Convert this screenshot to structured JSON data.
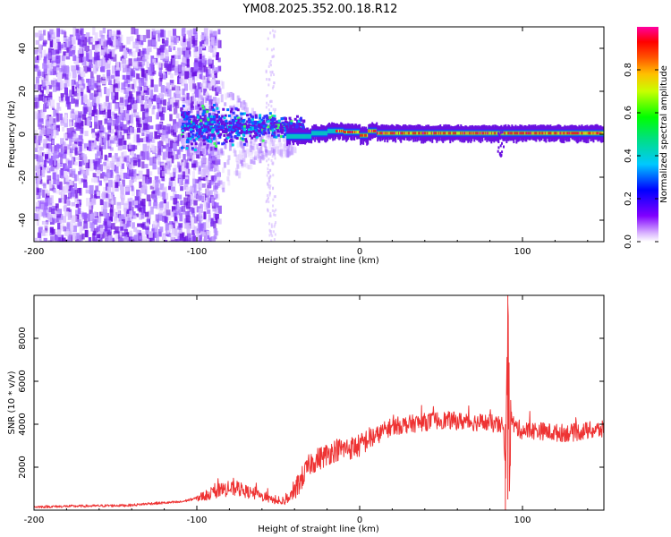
{
  "figure_title": "YM08.2025.352.00.18.R12",
  "chart_data": [
    {
      "type": "heatmap",
      "title": "YM08.2025.352.00.18.R12",
      "xlabel": "Height of straight line (km)",
      "ylabel": "Frequency (Hz)",
      "xlim": [
        -200,
        150
      ],
      "ylim": [
        -50,
        50
      ],
      "xticks": [
        -200,
        -100,
        0,
        100
      ],
      "yticks": [
        -40,
        -20,
        0,
        20,
        40
      ],
      "colorbar": {
        "label": "Normalized spectral amplitude",
        "range": [
          0.0,
          1.0
        ],
        "ticks": [
          0.0,
          0.2,
          0.4,
          0.6,
          0.8
        ],
        "colormap": "rainbow (purple-blue-cyan-green-yellow-orange-red-magenta)"
      },
      "description_points": {
        "noise_region_km": [
          -200,
          -95
        ],
        "dominant_frequency_hz": 0,
        "band_emerges_km": -45
      }
    },
    {
      "type": "line",
      "xlabel": "Height of straight line (km)",
      "ylabel": "SNR (10 * v/v)",
      "xlim": [
        -200,
        150
      ],
      "ylim": [
        0,
        10000
      ],
      "xticks": [
        -200,
        -100,
        0,
        100
      ],
      "yticks": [
        2000,
        4000,
        6000,
        8000
      ],
      "color": "#ee3333",
      "series": [
        {
          "name": "SNR",
          "x": [
            -200,
            -180,
            -160,
            -140,
            -130,
            -110,
            -100,
            -92,
            -85,
            -75,
            -65,
            -55,
            -48,
            -45,
            -40,
            -35,
            -30,
            -25,
            -20,
            -15,
            -10,
            -5,
            0,
            5,
            10,
            15,
            20,
            30,
            40,
            50,
            60,
            70,
            80,
            88,
            90,
            91,
            92,
            93,
            95,
            100,
            110,
            120,
            130,
            140,
            150
          ],
          "values": [
            150,
            180,
            200,
            230,
            300,
            380,
            560,
            750,
            950,
            1000,
            750,
            500,
            350,
            400,
            900,
            1550,
            2200,
            2400,
            2600,
            2800,
            2850,
            2900,
            3000,
            3300,
            3450,
            3700,
            3900,
            4000,
            4100,
            4200,
            4150,
            4100,
            4050,
            3900,
            2000,
            9000,
            3000,
            4300,
            3900,
            3700,
            3700,
            3600,
            3600,
            3700,
            3750
          ]
        }
      ]
    }
  ]
}
